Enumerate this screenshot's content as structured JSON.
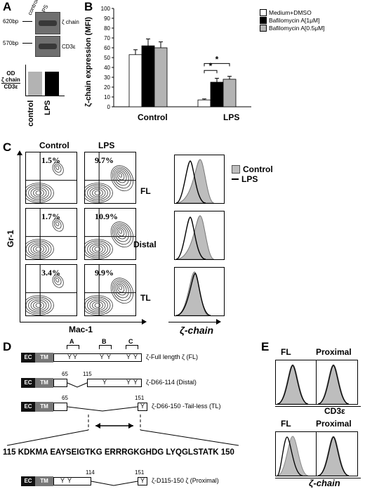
{
  "panel_labels": {
    "a": "A",
    "b": "B",
    "c": "C",
    "d": "D",
    "e": "E"
  },
  "panel_a": {
    "lane_labels": [
      "control",
      "LPS"
    ],
    "bp_labels": [
      "620bp",
      "570bp"
    ],
    "band_labels": [
      "ζ chain",
      "CD3ε"
    ],
    "od_label": [
      "OD",
      "ζ chain",
      "CD3ε"
    ],
    "x_labels": [
      "control",
      "LPS"
    ]
  },
  "panel_b": {
    "ylabel": "ζ-chain expression (MFI)",
    "legend": [
      "Medium+DMSO",
      "Bafilomycin A[1μM]",
      "Bafilomycin A[0.5μM]"
    ],
    "sig": "*"
  },
  "chart_data": {
    "type": "bar",
    "categories": [
      "Control",
      "LPS"
    ],
    "ylim": [
      0,
      100
    ],
    "yticks": [
      0,
      10,
      20,
      30,
      40,
      50,
      60,
      70,
      80,
      90,
      100
    ],
    "ylabel": "ζ-chain expression (MFI)",
    "series": [
      {
        "name": "Medium+DMSO",
        "color": "#ffffff",
        "values": [
          53,
          7
        ],
        "errors": [
          5,
          1
        ]
      },
      {
        "name": "Bafilomycin A[1μM]",
        "color": "#000000",
        "values": [
          62,
          25
        ],
        "errors": [
          7,
          4
        ]
      },
      {
        "name": "Bafilomycin A[0.5μM]",
        "color": "#b3b3b3",
        "values": [
          60,
          28
        ],
        "errors": [
          6,
          3
        ]
      }
    ],
    "annotations": [
      "*",
      "*"
    ]
  },
  "panel_c": {
    "col_headers": [
      "Control",
      "LPS"
    ],
    "rows": [
      {
        "label": "FL",
        "control_pct": "1.5%",
        "lps_pct": "9.7%"
      },
      {
        "label": "Distal",
        "control_pct": "1.7%",
        "lps_pct": "10.9%"
      },
      {
        "label": "TL",
        "control_pct": "3.4%",
        "lps_pct": "9.9%"
      }
    ],
    "ylabel": "Gr-1",
    "xlabel": "Mac-1",
    "hist_xlabel": "ζ-chain",
    "legend": [
      "Control",
      "LPS"
    ]
  },
  "panel_d": {
    "motifs": [
      "A",
      "B",
      "C"
    ],
    "domains": {
      "ec": "EC",
      "tm": "TM"
    },
    "constructs": [
      {
        "label": "ζ-Full length ζ (FL)"
      },
      {
        "label": "ζ-D66-114 (Distal)",
        "nums": [
          "65",
          "115"
        ]
      },
      {
        "label": "ζ-D66-150 -Tail-less (TL)",
        "nums": [
          "65",
          "151"
        ]
      },
      {
        "label": "ζ-D115-150 ζ (Proximal)",
        "nums": [
          "114",
          "151"
        ]
      }
    ],
    "sequence": "115 KDKMA EAYSEIGTKG ERRRGKGHDG LYQGLSTATK 150",
    "y": "Y"
  },
  "panel_e": {
    "col_headers": [
      "FL",
      "Proximal"
    ],
    "top_xlabel": "CD3ε",
    "bottom_xlabel": "ζ-chain"
  }
}
